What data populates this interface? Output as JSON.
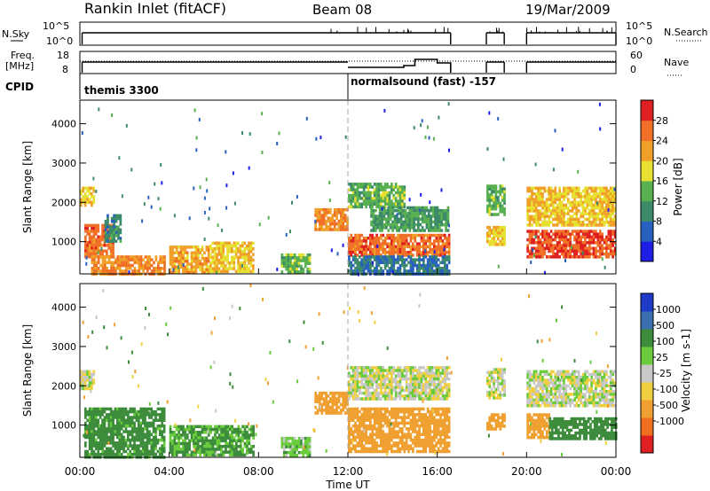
{
  "header": {
    "station": "Rankin Inlet (fitACF)",
    "beam": "Beam 08",
    "date": "19/Mar/2009"
  },
  "nsky_panel": {
    "left_label": "N.Sky",
    "right_label": "N.Search",
    "left_ticks": [
      "10^5",
      "10^0"
    ],
    "right_ticks": [
      "10^5",
      "10^0"
    ]
  },
  "freq_panel": {
    "left_label_1": "Freq.",
    "left_label_2": "[MHz]",
    "right_label": "Nave",
    "left_ticks": [
      "18",
      "8"
    ],
    "right_ticks": [
      "60",
      "0"
    ]
  },
  "cpid_panel": {
    "label": "CPID",
    "mode_1": "themis 3300",
    "mode_2": "normalsound (fast) -157"
  },
  "x_axis": {
    "label": "Time UT",
    "ticks": [
      "00:00",
      "04:00",
      "08:00",
      "12:00",
      "16:00",
      "20:00",
      "00:00"
    ]
  },
  "colors": {
    "power_scale": [
      "#1e1ee6",
      "#2860c0",
      "#3d8a6a",
      "#58b050",
      "#e6e030",
      "#f0a028",
      "#f07028",
      "#e02020"
    ],
    "velocity_scale": [
      "#1e3cc8",
      "#3a70b0",
      "#3c8c3c",
      "#6acc3c",
      "#c8c8c8",
      "#f0d040",
      "#f0a030",
      "#f07020",
      "#e02020"
    ]
  },
  "chart_data": [
    {
      "type": "heatmap",
      "name": "power",
      "ylabel": "Slant Range [km]",
      "xlabel": "",
      "x_range_hours": [
        0,
        24
      ],
      "ylim": [
        180,
        4600
      ],
      "y_ticks": [
        1000,
        2000,
        3000,
        4000
      ],
      "colorbar_label": "Power [dB]",
      "colorbar_ticks": [
        "4",
        "8",
        "12",
        "16",
        "20",
        "24",
        "28"
      ],
      "colorbar_range": [
        0,
        32
      ],
      "regions": [
        {
          "t0": 0.2,
          "t1": 1.5,
          "r0": 650,
          "r1": 1450,
          "value": 26
        },
        {
          "t0": 0.0,
          "t1": 0.6,
          "r0": 1900,
          "r1": 2400,
          "value": 20
        },
        {
          "t0": 0.5,
          "t1": 3.8,
          "r0": 200,
          "r1": 650,
          "value": 24
        },
        {
          "t0": 1.1,
          "t1": 1.8,
          "r0": 1000,
          "r1": 1700,
          "value": 10
        },
        {
          "t0": 4.0,
          "t1": 5.8,
          "r0": 250,
          "r1": 900,
          "value": 22
        },
        {
          "t0": 5.8,
          "t1": 7.8,
          "r0": 250,
          "r1": 1000,
          "value": 20
        },
        {
          "t0": 9.0,
          "t1": 10.3,
          "r0": 200,
          "r1": 700,
          "value": 14
        },
        {
          "t0": 10.5,
          "t1": 12.0,
          "r0": 1300,
          "r1": 1850,
          "value": 24
        },
        {
          "t0": 12.0,
          "t1": 14.5,
          "r0": 1900,
          "r1": 2500,
          "value": 14
        },
        {
          "t0": 12.0,
          "t1": 16.5,
          "r0": 650,
          "r1": 1200,
          "value": 26
        },
        {
          "t0": 13.0,
          "t1": 16.5,
          "r0": 1300,
          "r1": 1900,
          "value": 12
        },
        {
          "t0": 12.0,
          "t1": 16.5,
          "r0": 200,
          "r1": 650,
          "value": 8
        },
        {
          "t0": 18.2,
          "t1": 19.0,
          "r0": 1700,
          "r1": 2450,
          "value": 14
        },
        {
          "t0": 18.2,
          "t1": 19.0,
          "r0": 900,
          "r1": 1400,
          "value": 20
        },
        {
          "t0": 20.0,
          "t1": 24.0,
          "r0": 1400,
          "r1": 2400,
          "value": 20
        },
        {
          "t0": 20.0,
          "t1": 24.0,
          "r0": 650,
          "r1": 1300,
          "value": 28
        }
      ]
    },
    {
      "type": "heatmap",
      "name": "velocity",
      "ylabel": "Slant Range [km]",
      "xlabel": "Time UT",
      "x_range_hours": [
        0,
        24
      ],
      "ylim": [
        180,
        4600
      ],
      "y_ticks": [
        1000,
        2000,
        3000,
        4000
      ],
      "colorbar_label": "Velocity [m s-1]",
      "colorbar_ticks": [
        "1000",
        "500",
        "100",
        "25",
        "-25",
        "-100",
        "-500",
        "-1000"
      ],
      "regions": [
        {
          "t0": 0.0,
          "t1": 0.6,
          "r0": 1900,
          "r1": 2400,
          "value": 0
        },
        {
          "t0": 0.2,
          "t1": 3.8,
          "r0": 200,
          "r1": 1450,
          "value": 150
        },
        {
          "t0": 4.0,
          "t1": 7.8,
          "r0": 250,
          "r1": 1000,
          "value": 120
        },
        {
          "t0": 9.0,
          "t1": 10.3,
          "r0": 200,
          "r1": 700,
          "value": 60
        },
        {
          "t0": 10.5,
          "t1": 12.0,
          "r0": 1300,
          "r1": 1850,
          "value": -300
        },
        {
          "t0": 12.0,
          "t1": 16.5,
          "r0": 1700,
          "r1": 2500,
          "value": 0
        },
        {
          "t0": 12.0,
          "t1": 16.5,
          "r0": 300,
          "r1": 1450,
          "value": -200
        },
        {
          "t0": 18.2,
          "t1": 19.0,
          "r0": 1700,
          "r1": 2450,
          "value": 0
        },
        {
          "t0": 18.2,
          "t1": 19.0,
          "r0": 900,
          "r1": 1300,
          "value": -300
        },
        {
          "t0": 20.0,
          "t1": 24.0,
          "r0": 1500,
          "r1": 2400,
          "value": 0
        },
        {
          "t0": 20.0,
          "t1": 21.0,
          "r0": 700,
          "r1": 1300,
          "value": -200
        },
        {
          "t0": 21.0,
          "t1": 24.0,
          "r0": 650,
          "r1": 1200,
          "value": 300
        }
      ]
    }
  ]
}
